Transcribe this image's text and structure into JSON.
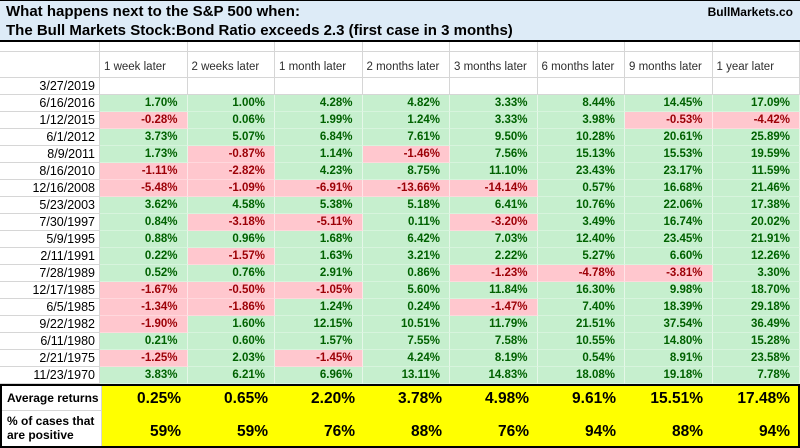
{
  "title": {
    "line1": "What happens next to the S&P 500 when:",
    "line2": "The Bull Markets Stock:Bond Ratio exceeds 2.3 (first case in 3 months)",
    "brand": "BullMarkets.co"
  },
  "colors": {
    "title_bg": "#DDEBF7",
    "positive_bg": "#C6EFCE",
    "positive_text": "#006100",
    "negative_bg": "#FFC7CE",
    "negative_text": "#9C0006",
    "summary_bg": "#FFFF00"
  },
  "table": {
    "columns": [
      "1 week later",
      "2 weeks later",
      "1 month later",
      "2 months later",
      "3 months later",
      "6 months later",
      "9 months later",
      "1 year later"
    ],
    "rows": [
      {
        "date": "3/27/2019",
        "values": [
          null,
          null,
          null,
          null,
          null,
          null,
          null,
          null
        ]
      },
      {
        "date": "6/16/2016",
        "values": [
          "1.70%",
          "1.00%",
          "4.28%",
          "4.82%",
          "3.33%",
          "8.44%",
          "14.45%",
          "17.09%"
        ]
      },
      {
        "date": "1/12/2015",
        "values": [
          "-0.28%",
          "0.06%",
          "1.99%",
          "1.24%",
          "3.33%",
          "3.98%",
          "-0.53%",
          "-4.42%"
        ]
      },
      {
        "date": "6/1/2012",
        "values": [
          "3.73%",
          "5.07%",
          "6.84%",
          "7.61%",
          "9.50%",
          "10.28%",
          "20.61%",
          "25.89%"
        ]
      },
      {
        "date": "8/9/2011",
        "values": [
          "1.73%",
          "-0.87%",
          "1.14%",
          "-1.46%",
          "7.56%",
          "15.13%",
          "15.53%",
          "19.59%"
        ]
      },
      {
        "date": "8/16/2010",
        "values": [
          "-1.11%",
          "-2.82%",
          "4.23%",
          "8.75%",
          "11.10%",
          "23.43%",
          "23.17%",
          "11.59%"
        ]
      },
      {
        "date": "12/16/2008",
        "values": [
          "-5.48%",
          "-1.09%",
          "-6.91%",
          "-13.66%",
          "-14.14%",
          "0.57%",
          "16.68%",
          "21.46%"
        ]
      },
      {
        "date": "5/23/2003",
        "values": [
          "3.62%",
          "4.58%",
          "5.38%",
          "5.18%",
          "6.41%",
          "10.76%",
          "22.06%",
          "17.38%"
        ]
      },
      {
        "date": "7/30/1997",
        "values": [
          "0.84%",
          "-3.18%",
          "-5.11%",
          "0.11%",
          "-3.20%",
          "3.49%",
          "16.74%",
          "20.02%"
        ]
      },
      {
        "date": "5/9/1995",
        "values": [
          "0.88%",
          "0.96%",
          "1.68%",
          "6.42%",
          "7.03%",
          "12.40%",
          "23.45%",
          "21.91%"
        ]
      },
      {
        "date": "2/11/1991",
        "values": [
          "0.22%",
          "-1.57%",
          "1.63%",
          "3.21%",
          "2.22%",
          "5.27%",
          "6.60%",
          "12.26%"
        ]
      },
      {
        "date": "7/28/1989",
        "values": [
          "0.52%",
          "0.76%",
          "2.91%",
          "0.86%",
          "-1.23%",
          "-4.78%",
          "-3.81%",
          "3.30%"
        ]
      },
      {
        "date": "12/17/1985",
        "values": [
          "-1.67%",
          "-0.50%",
          "-1.05%",
          "5.60%",
          "11.84%",
          "16.30%",
          "9.98%",
          "18.70%"
        ]
      },
      {
        "date": "6/5/1985",
        "values": [
          "-1.34%",
          "-1.86%",
          "1.24%",
          "0.24%",
          "-1.47%",
          "7.40%",
          "18.39%",
          "29.18%"
        ]
      },
      {
        "date": "9/22/1982",
        "values": [
          "-1.90%",
          "1.60%",
          "12.15%",
          "10.51%",
          "11.79%",
          "21.51%",
          "37.54%",
          "36.49%"
        ]
      },
      {
        "date": "6/11/1980",
        "values": [
          "0.21%",
          "0.60%",
          "1.57%",
          "7.55%",
          "7.58%",
          "10.55%",
          "14.80%",
          "15.28%"
        ]
      },
      {
        "date": "2/21/1975",
        "values": [
          "-1.25%",
          "2.03%",
          "-1.45%",
          "4.24%",
          "8.19%",
          "0.54%",
          "8.91%",
          "23.58%"
        ]
      },
      {
        "date": "11/23/1970",
        "values": [
          "3.83%",
          "6.21%",
          "6.96%",
          "13.11%",
          "14.83%",
          "18.08%",
          "19.18%",
          "7.78%"
        ]
      }
    ],
    "summary": {
      "average_label": "Average returns",
      "average": [
        "0.25%",
        "0.65%",
        "2.20%",
        "3.78%",
        "4.98%",
        "9.61%",
        "15.51%",
        "17.48%"
      ],
      "positive_label_lines": [
        "% of cases that",
        "are positive"
      ],
      "positive": [
        "59%",
        "59%",
        "76%",
        "88%",
        "76%",
        "94%",
        "88%",
        "94%"
      ]
    }
  }
}
